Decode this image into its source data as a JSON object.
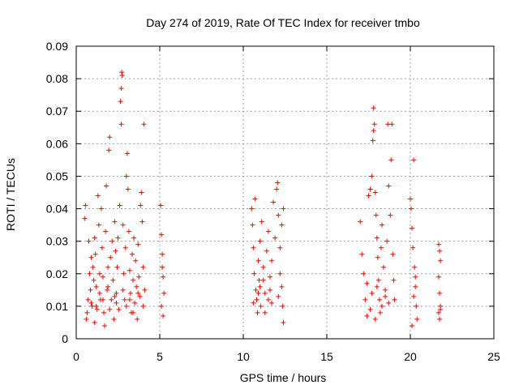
{
  "chart_data": {
    "type": "scatter",
    "title": "Day 274 of 2019, Rate Of TEC Index for receiver tmbo",
    "xlabel": "GPS time / hours",
    "ylabel": "ROTI / TECUs",
    "xlim": [
      0,
      25
    ],
    "ylim": [
      0,
      0.09
    ],
    "xticks": [
      "0",
      "5",
      "10",
      "15",
      "20",
      "25"
    ],
    "yticks": [
      "0",
      "0.01",
      "0.02",
      "0.03",
      "0.04",
      "0.05",
      "0.06",
      "0.07",
      "0.08",
      "0.09"
    ],
    "grid": true,
    "marker": "+",
    "color": "#ff0000",
    "series": [
      {
        "points": [
          [
            0.5,
            0.037
          ],
          [
            0.55,
            0.041
          ],
          [
            0.6,
            0.006
          ],
          [
            0.65,
            0.008
          ],
          [
            0.7,
            0.012
          ],
          [
            0.75,
            0.03
          ],
          [
            0.8,
            0.02
          ],
          [
            0.85,
            0.015
          ],
          [
            0.9,
            0.025
          ],
          [
            0.95,
            0.01
          ],
          [
            1.0,
            0.022
          ],
          [
            1.05,
            0.018
          ],
          [
            1.1,
            0.031
          ],
          [
            1.15,
            0.026
          ],
          [
            1.2,
            0.016
          ],
          [
            1.25,
            0.009
          ],
          [
            1.3,
            0.044
          ],
          [
            1.35,
            0.035
          ],
          [
            1.4,
            0.02
          ],
          [
            1.45,
            0.012
          ],
          [
            1.5,
            0.04
          ],
          [
            1.55,
            0.028
          ],
          [
            1.6,
            0.019
          ],
          [
            1.65,
            0.008
          ],
          [
            1.7,
            0.004
          ],
          [
            1.75,
            0.033
          ],
          [
            1.8,
            0.047
          ],
          [
            1.85,
            0.015
          ],
          [
            1.9,
            0.022
          ],
          [
            1.95,
            0.058
          ],
          [
            2.0,
            0.062
          ],
          [
            2.05,
            0.025
          ],
          [
            2.1,
            0.012
          ],
          [
            2.15,
            0.03
          ],
          [
            2.2,
            0.018
          ],
          [
            2.25,
            0.006
          ],
          [
            2.3,
            0.036
          ],
          [
            2.35,
            0.027
          ],
          [
            2.4,
            0.014
          ],
          [
            2.45,
            0.022
          ],
          [
            2.5,
            0.031
          ],
          [
            2.55,
            0.009
          ],
          [
            2.6,
            0.041
          ],
          [
            2.65,
            0.073
          ],
          [
            2.7,
            0.077
          ],
          [
            2.72,
            0.082
          ],
          [
            2.75,
            0.081
          ],
          [
            2.7,
            0.066
          ],
          [
            2.8,
            0.035
          ],
          [
            2.85,
            0.02
          ],
          [
            2.9,
            0.012
          ],
          [
            2.95,
            0.028
          ],
          [
            3.0,
            0.05
          ],
          [
            3.05,
            0.057
          ],
          [
            3.1,
            0.046
          ],
          [
            3.15,
            0.033
          ],
          [
            3.2,
            0.021
          ],
          [
            3.25,
            0.014
          ],
          [
            3.3,
            0.008
          ],
          [
            3.35,
            0.026
          ],
          [
            3.4,
            0.018
          ],
          [
            3.45,
            0.031
          ],
          [
            3.5,
            0.011
          ],
          [
            3.55,
            0.024
          ],
          [
            3.6,
            0.016
          ],
          [
            3.65,
            0.006
          ],
          [
            3.7,
            0.029
          ],
          [
            3.75,
            0.019
          ],
          [
            3.8,
            0.013
          ],
          [
            3.85,
            0.041
          ],
          [
            3.9,
            0.045
          ],
          [
            3.95,
            0.036
          ],
          [
            4.0,
            0.022
          ],
          [
            4.05,
            0.066
          ],
          [
            4.1,
            0.015
          ],
          [
            1.2,
            0.01
          ],
          [
            1.6,
            0.012
          ],
          [
            2.0,
            0.009
          ],
          [
            2.4,
            0.011
          ],
          [
            3.0,
            0.01
          ],
          [
            3.4,
            0.008
          ],
          [
            0.9,
            0.011
          ],
          [
            1.4,
            0.014
          ],
          [
            1.9,
            0.016
          ],
          [
            2.3,
            0.013
          ],
          [
            2.8,
            0.015
          ],
          [
            3.2,
            0.012
          ],
          [
            3.7,
            0.014
          ],
          [
            4.0,
            0.01
          ],
          [
            1.1,
            0.005
          ],
          [
            5.05,
            0.041
          ],
          [
            5.1,
            0.032
          ],
          [
            5.15,
            0.026
          ],
          [
            5.2,
            0.019
          ],
          [
            5.25,
            0.014
          ],
          [
            5.1,
            0.01
          ],
          [
            5.2,
            0.007
          ],
          [
            5.15,
            0.022
          ],
          [
            10.5,
            0.04
          ],
          [
            10.55,
            0.035
          ],
          [
            10.6,
            0.028
          ],
          [
            10.65,
            0.02
          ],
          [
            10.7,
            0.043
          ],
          [
            10.75,
            0.015
          ],
          [
            10.8,
            0.012
          ],
          [
            10.85,
            0.008
          ],
          [
            10.9,
            0.024
          ],
          [
            10.95,
            0.018
          ],
          [
            11.0,
            0.03
          ],
          [
            11.05,
            0.01
          ],
          [
            11.1,
            0.036
          ],
          [
            11.2,
            0.022
          ],
          [
            11.3,
            0.014
          ],
          [
            11.4,
            0.027
          ],
          [
            11.5,
            0.033
          ],
          [
            11.6,
            0.019
          ],
          [
            11.7,
            0.024
          ],
          [
            11.8,
            0.042
          ],
          [
            11.9,
            0.031
          ],
          [
            12.0,
            0.046
          ],
          [
            12.05,
            0.048
          ],
          [
            12.1,
            0.038
          ],
          [
            12.2,
            0.028
          ],
          [
            12.3,
            0.016
          ],
          [
            12.35,
            0.01
          ],
          [
            12.4,
            0.005
          ],
          [
            11.5,
            0.012
          ],
          [
            11.0,
            0.016
          ],
          [
            11.3,
            0.008
          ],
          [
            11.7,
            0.011
          ],
          [
            12.1,
            0.013
          ],
          [
            10.6,
            0.011
          ],
          [
            10.9,
            0.014
          ],
          [
            11.2,
            0.018
          ],
          [
            11.6,
            0.015
          ],
          [
            12.2,
            0.02
          ],
          [
            12.3,
            0.035
          ],
          [
            12.4,
            0.04
          ],
          [
            17.0,
            0.036
          ],
          [
            17.1,
            0.026
          ],
          [
            17.2,
            0.02
          ],
          [
            17.3,
            0.012
          ],
          [
            17.4,
            0.017
          ],
          [
            17.5,
            0.044
          ],
          [
            17.6,
            0.046
          ],
          [
            17.7,
            0.05
          ],
          [
            17.75,
            0.061
          ],
          [
            17.8,
            0.064
          ],
          [
            17.8,
            0.071
          ],
          [
            17.85,
            0.066
          ],
          [
            17.9,
            0.045
          ],
          [
            17.95,
            0.038
          ],
          [
            18.0,
            0.031
          ],
          [
            18.05,
            0.025
          ],
          [
            18.1,
            0.018
          ],
          [
            18.15,
            0.012
          ],
          [
            18.2,
            0.008
          ],
          [
            18.25,
            0.028
          ],
          [
            18.3,
            0.035
          ],
          [
            18.4,
            0.022
          ],
          [
            18.5,
            0.015
          ],
          [
            18.6,
            0.03
          ],
          [
            18.65,
            0.066
          ],
          [
            18.7,
            0.047
          ],
          [
            18.8,
            0.038
          ],
          [
            18.85,
            0.055
          ],
          [
            18.9,
            0.066
          ],
          [
            18.95,
            0.026
          ],
          [
            19.0,
            0.018
          ],
          [
            19.05,
            0.012
          ],
          [
            17.4,
            0.007
          ],
          [
            17.6,
            0.009
          ],
          [
            17.9,
            0.006
          ],
          [
            18.3,
            0.01
          ],
          [
            18.7,
            0.011
          ],
          [
            17.7,
            0.014
          ],
          [
            18.0,
            0.016
          ],
          [
            18.5,
            0.013
          ],
          [
            20.0,
            0.043
          ],
          [
            20.05,
            0.04
          ],
          [
            20.1,
            0.034
          ],
          [
            20.15,
            0.028
          ],
          [
            20.2,
            0.055
          ],
          [
            20.25,
            0.022
          ],
          [
            20.3,
            0.016
          ],
          [
            20.35,
            0.01
          ],
          [
            20.4,
            0.006
          ],
          [
            20.1,
            0.004
          ],
          [
            20.2,
            0.013
          ],
          [
            20.3,
            0.019
          ],
          [
            21.7,
            0.029
          ],
          [
            21.75,
            0.027
          ],
          [
            21.8,
            0.024
          ],
          [
            21.7,
            0.019
          ],
          [
            21.75,
            0.014
          ],
          [
            21.8,
            0.01
          ],
          [
            21.7,
            0.008
          ],
          [
            21.75,
            0.006
          ],
          [
            21.8,
            0.009
          ]
        ]
      }
    ]
  }
}
